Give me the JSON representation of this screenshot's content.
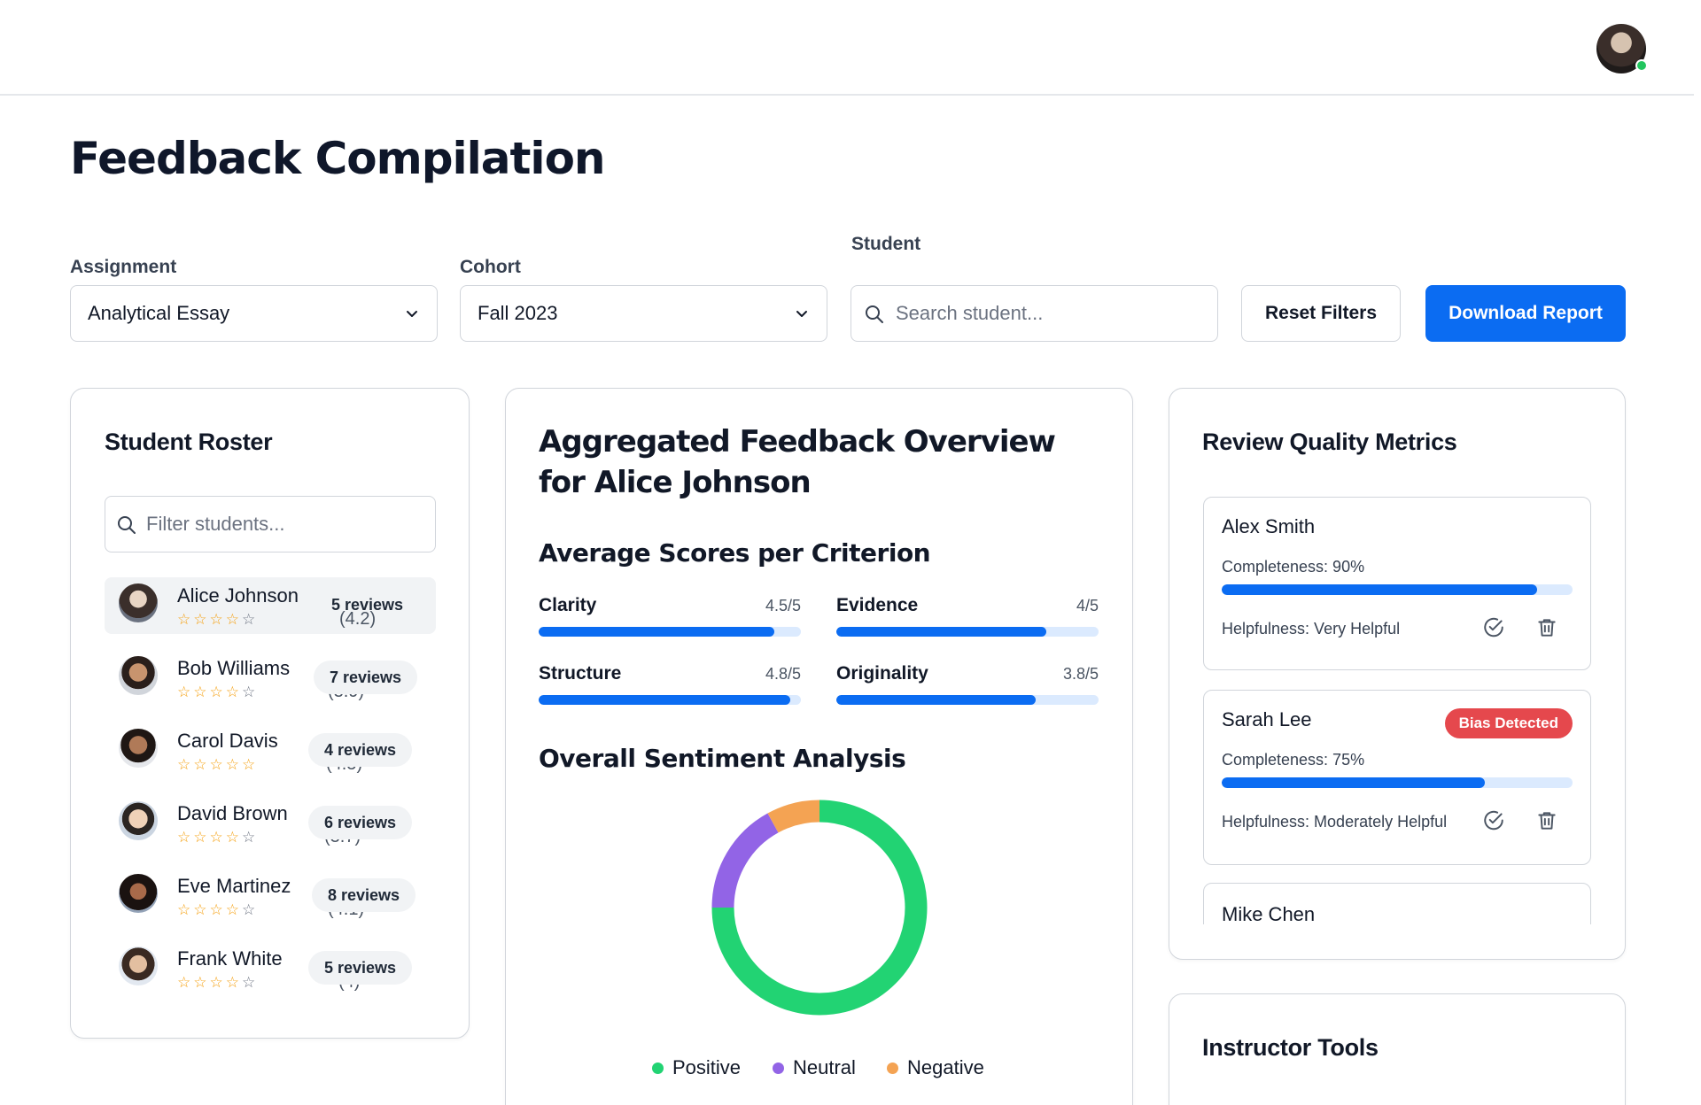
{
  "header": {
    "page_title": "Feedback Compilation"
  },
  "filters": {
    "assignment": {
      "label": "Assignment",
      "value": "Analytical Essay"
    },
    "cohort": {
      "label": "Cohort",
      "value": "Fall 2023"
    },
    "student": {
      "label": "Student",
      "placeholder": "Search student..."
    },
    "reset_label": "Reset Filters",
    "download_label": "Download Report"
  },
  "roster": {
    "title": "Student Roster",
    "filter_placeholder": "Filter students...",
    "students": [
      {
        "name": "Alice Johnson",
        "score": "(4.2)",
        "rating": 4.2,
        "reviews": "5 reviews"
      },
      {
        "name": "Bob Williams",
        "score": "(3.9)",
        "rating": 3.9,
        "reviews": "7 reviews"
      },
      {
        "name": "Carol Davis",
        "score": "(4.5)",
        "rating": 4.5,
        "reviews": "4 reviews"
      },
      {
        "name": "David Brown",
        "score": "(3.7)",
        "rating": 3.7,
        "reviews": "6 reviews"
      },
      {
        "name": "Eve Martinez",
        "score": "(4.1)",
        "rating": 4.1,
        "reviews": "8 reviews"
      },
      {
        "name": "Frank White",
        "score": "(4)",
        "rating": 4,
        "reviews": "5 reviews"
      }
    ]
  },
  "overview": {
    "title": "Aggregated Feedback Overview for Alice Johnson",
    "scores_title": "Average Scores per Criterion",
    "criteria": [
      {
        "name": "Clarity",
        "value": "4.5/5",
        "score": 4.5
      },
      {
        "name": "Evidence",
        "value": "4/5",
        "score": 4
      },
      {
        "name": "Structure",
        "value": "4.8/5",
        "score": 4.8
      },
      {
        "name": "Originality",
        "value": "3.8/5",
        "score": 3.8
      }
    ],
    "sentiment_title": "Overall Sentiment Analysis",
    "sentiment": [
      {
        "name": "Positive",
        "share": 0.75,
        "color": "#22d373"
      },
      {
        "name": "Neutral",
        "share": 0.17,
        "color": "#9264e6"
      },
      {
        "name": "Negative",
        "share": 0.08,
        "color": "#f4a353"
      }
    ]
  },
  "review_quality": {
    "title": "Review Quality Metrics",
    "reviewers": [
      {
        "name": "Alex Smith",
        "completeness": "Completeness: 90%",
        "completeness_value": 0.9,
        "helpfulness": "Helpfulness: Very Helpful"
      },
      {
        "name": "Sarah Lee",
        "badge": "Bias Detected",
        "completeness": "Completeness: 75%",
        "completeness_value": 0.75,
        "helpfulness": "Helpfulness: Moderately Helpful"
      },
      {
        "name": "Mike Chen"
      }
    ]
  },
  "instructor_tools": {
    "title": "Instructor Tools"
  },
  "colors": {
    "primary": "#0b6cf2",
    "star": "#f59e0b",
    "bias": "#e5484d"
  }
}
